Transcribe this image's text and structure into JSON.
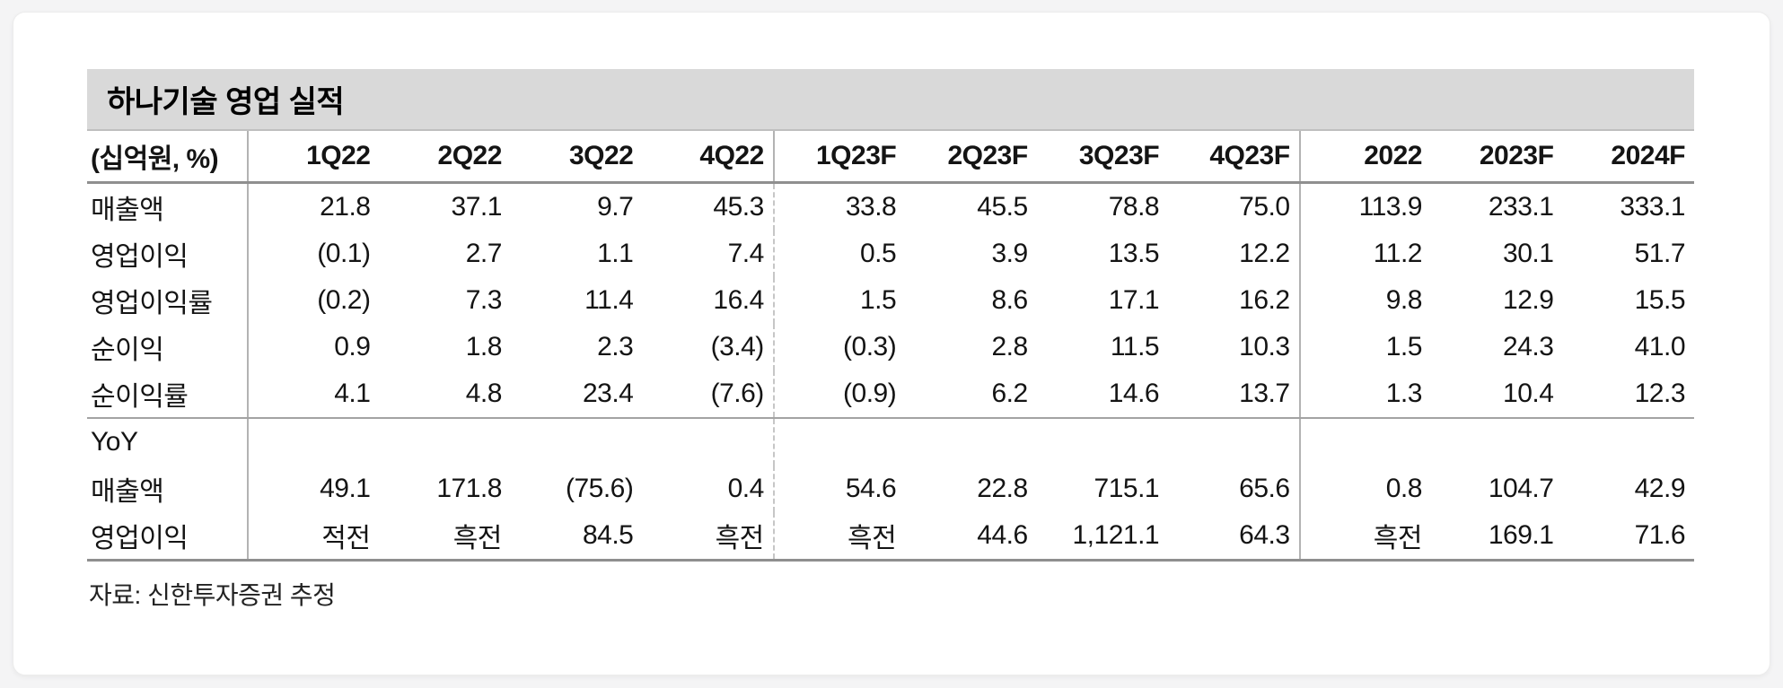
{
  "table": {
    "title": "하나기술 영업 실적",
    "unit_label": "(십억원, %)",
    "columns": [
      "1Q22",
      "2Q22",
      "3Q22",
      "4Q22",
      "1Q23F",
      "2Q23F",
      "3Q23F",
      "4Q23F",
      "2022",
      "2023F",
      "2024F"
    ],
    "rows": [
      {
        "label": "매출액",
        "values": [
          "21.8",
          "37.1",
          "9.7",
          "45.3",
          "33.8",
          "45.5",
          "78.8",
          "75.0",
          "113.9",
          "233.1",
          "333.1"
        ]
      },
      {
        "label": "영업이익",
        "values": [
          "(0.1)",
          "2.7",
          "1.1",
          "7.4",
          "0.5",
          "3.9",
          "13.5",
          "12.2",
          "11.2",
          "30.1",
          "51.7"
        ]
      },
      {
        "label": "영업이익률",
        "values": [
          "(0.2)",
          "7.3",
          "11.4",
          "16.4",
          "1.5",
          "8.6",
          "17.1",
          "16.2",
          "9.8",
          "12.9",
          "15.5"
        ]
      },
      {
        "label": "순이익",
        "values": [
          "0.9",
          "1.8",
          "2.3",
          "(3.4)",
          "(0.3)",
          "2.8",
          "11.5",
          "10.3",
          "1.5",
          "24.3",
          "41.0"
        ]
      },
      {
        "label": "순이익률",
        "values": [
          "4.1",
          "4.8",
          "23.4",
          "(7.6)",
          "(0.9)",
          "6.2",
          "14.6",
          "13.7",
          "1.3",
          "10.4",
          "12.3"
        ]
      }
    ],
    "yoy_section": {
      "label": "YoY",
      "rows": [
        {
          "label": "매출액",
          "values": [
            "49.1",
            "171.8",
            "(75.6)",
            "0.4",
            "54.6",
            "22.8",
            "715.1",
            "65.6",
            "0.8",
            "104.7",
            "42.9"
          ]
        },
        {
          "label": "영업이익",
          "values": [
            "적전",
            "흑전",
            "84.5",
            "흑전",
            "흑전",
            "44.6",
            "1,121.1",
            "64.3",
            "흑전",
            "169.1",
            "71.6"
          ]
        }
      ]
    },
    "source": "자료: 신한투자증권 추정"
  },
  "colors": {
    "title_bar_bg": "#d9d9d9",
    "card_bg": "#ffffff",
    "page_bg": "#f4f4f5",
    "heavy_rule": "#8f8f8f",
    "light_rule": "#b3b3b3",
    "text": "#141414"
  }
}
